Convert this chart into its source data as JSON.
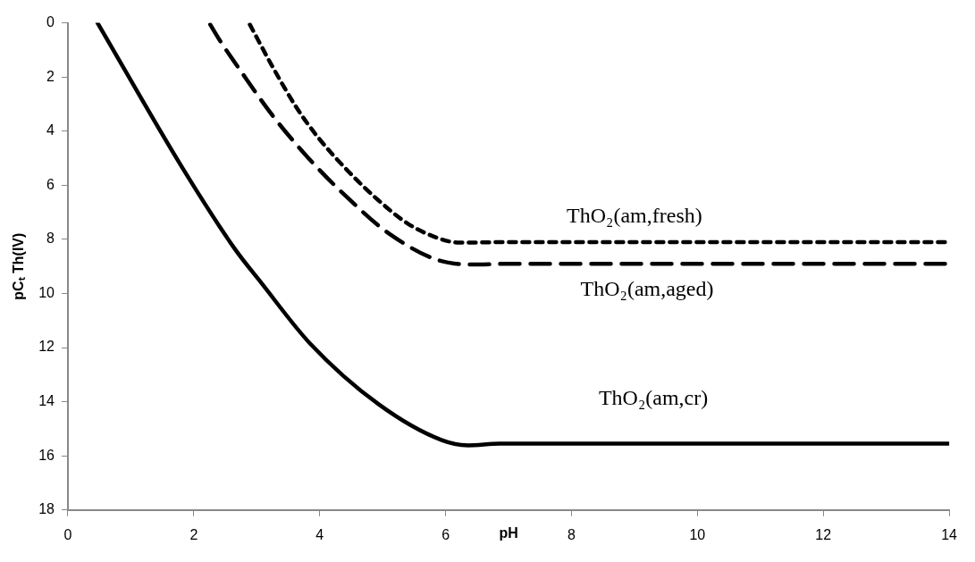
{
  "chart_data": {
    "type": "line",
    "xlabel": "pH",
    "ylabel": "pCₜ Th(IV)",
    "xlim": [
      0,
      14
    ],
    "xticks": [
      0,
      2,
      4,
      6,
      8,
      10,
      12,
      14
    ],
    "ylim": [
      18,
      0
    ],
    "yticks": [
      0,
      2,
      4,
      6,
      8,
      10,
      12,
      14,
      16,
      18
    ],
    "grid": false,
    "legend": false,
    "marker": "none",
    "series": [
      {
        "name": "ThO₂(am,fresh)",
        "color": "#000000",
        "line_style": "dotted",
        "x": [
          2.89,
          3.26,
          3.64,
          3.97,
          4.46,
          4.93,
          5.4,
          5.89,
          6.21,
          7,
          14
        ],
        "values": [
          0.06,
          1.66,
          3.16,
          4.22,
          5.5,
          6.55,
          7.42,
          7.96,
          8.12,
          8.1,
          8.1
        ]
      },
      {
        "name": "ThO₂(am,aged)",
        "color": "#000000",
        "line_style": "dashed",
        "x": [
          2.26,
          2.4,
          2.74,
          3.26,
          3.83,
          4.46,
          5.11,
          5.93,
          6.53,
          7,
          14
        ],
        "values": [
          0.06,
          0.6,
          1.76,
          3.45,
          5.02,
          6.5,
          7.8,
          8.8,
          8.93,
          8.9,
          8.9
        ]
      },
      {
        "name": "ThO₂(am,cr)",
        "color": "#000000",
        "line_style": "solid",
        "x": [
          0.47,
          1.83,
          2.66,
          3.07,
          3.84,
          4.94,
          5.94,
          6.36,
          6.86,
          14
        ],
        "values": [
          0,
          5.4,
          8.38,
          9.6,
          11.83,
          14.1,
          15.42,
          15.61,
          15.55,
          15.55
        ]
      }
    ]
  }
}
